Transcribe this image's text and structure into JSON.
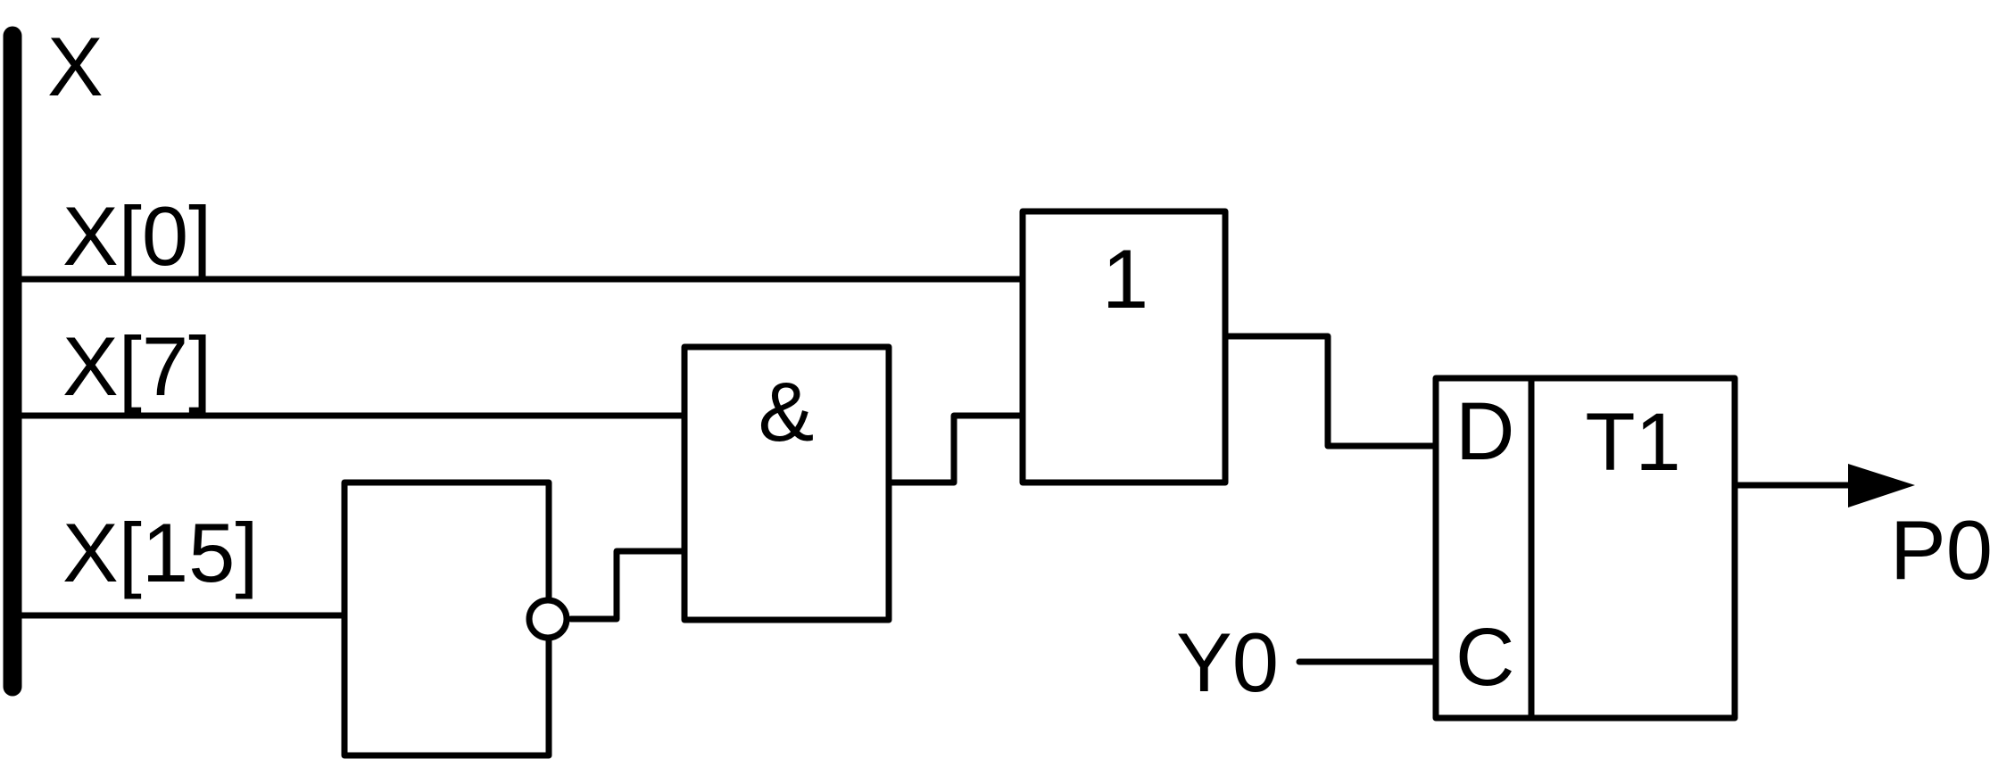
{
  "diagram": {
    "bus_label": "X",
    "inputs": {
      "x0": "X[0]",
      "x7": "X[7]",
      "x15": "X[15]"
    },
    "and_gate_symbol": "&",
    "or_gate_symbol": "1",
    "flipflop": {
      "d_pin": "D",
      "c_pin": "C",
      "name": "T1"
    },
    "clock_input": "Y0",
    "output": "P0"
  }
}
